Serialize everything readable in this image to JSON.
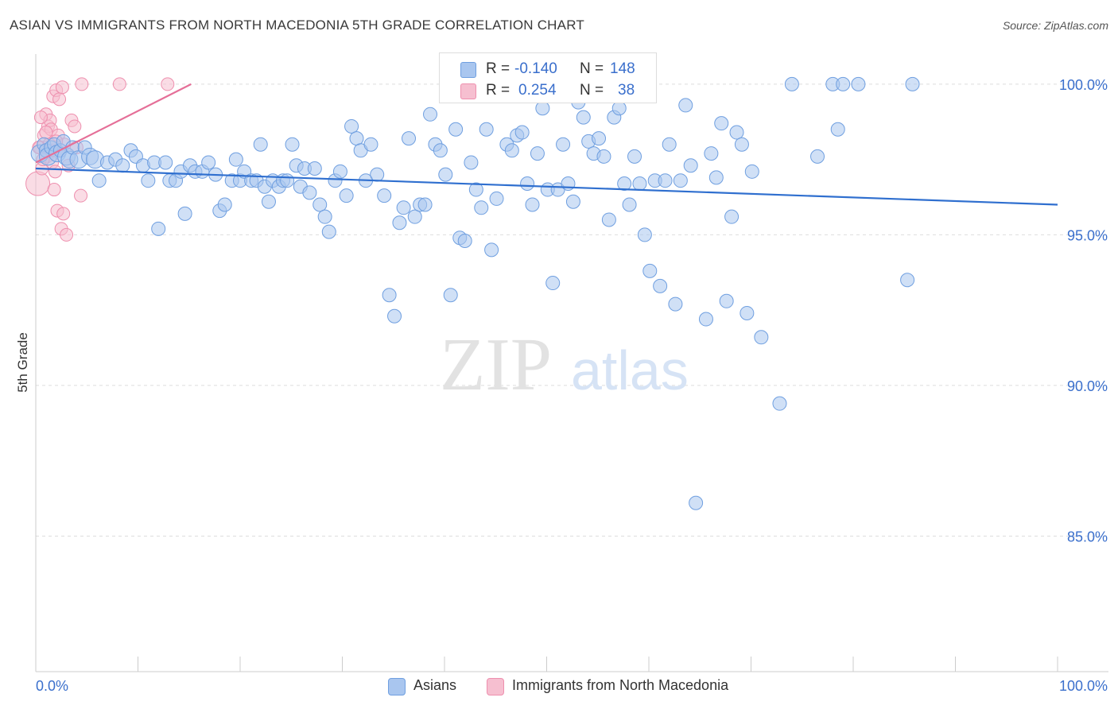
{
  "header": {
    "title": "ASIAN VS IMMIGRANTS FROM NORTH MACEDONIA 5TH GRADE CORRELATION CHART",
    "source": "Source: ZipAtlas.com"
  },
  "legend_box": {
    "rows": [
      {
        "r_label": "R =",
        "r_value": "-0.140",
        "n_label": "N =",
        "n_value": "148"
      },
      {
        "r_label": "R =",
        "r_value": "0.254",
        "n_label": "N =",
        "n_value": "38"
      }
    ]
  },
  "bottom_legend": {
    "asians": "Asians",
    "macedonia": "Immigrants from North Macedonia"
  },
  "watermark": {
    "zip": "ZIP",
    "atlas": "atlas"
  },
  "colors": {
    "blue_fill": "#a9c6ef",
    "blue_stroke": "#6f9fe0",
    "blue_line": "#2f6fcf",
    "pink_fill": "#f6bfd0",
    "pink_stroke": "#ee8fae",
    "pink_line": "#e56f98",
    "axis_text": "#3a6fcc",
    "grid": "#dddddd"
  },
  "chart_data": {
    "type": "scatter",
    "title": "ASIAN VS IMMIGRANTS FROM NORTH MACEDONIA 5TH GRADE CORRELATION CHART",
    "xlabel": "",
    "ylabel": "5th Grade",
    "xlim": [
      0,
      100
    ],
    "ylim": [
      80.5,
      101.0
    ],
    "x_tick_labels": [
      "0.0%",
      "100.0%"
    ],
    "y_ticks": [
      85.0,
      90.0,
      95.0,
      100.0
    ],
    "y_tick_labels": [
      "85.0%",
      "90.0%",
      "95.0%",
      "100.0%"
    ],
    "grid": true,
    "legend_position": "top-center",
    "series": [
      {
        "name": "Asians",
        "r": -0.14,
        "n": 148,
        "trend": {
          "x": [
            0,
            100
          ],
          "y": [
            97.2,
            96.0
          ]
        },
        "points": [
          [
            0.4,
            97.7
          ],
          [
            0.8,
            98.0
          ],
          [
            1.0,
            97.8
          ],
          [
            1.2,
            97.6
          ],
          [
            1.5,
            97.9
          ],
          [
            1.8,
            98.0
          ],
          [
            2.1,
            97.7
          ],
          [
            2.4,
            97.8
          ],
          [
            2.7,
            98.1
          ],
          [
            3.0,
            97.6
          ],
          [
            3.3,
            97.5
          ],
          [
            3.6,
            97.9
          ],
          [
            4.2,
            97.5
          ],
          [
            4.8,
            97.9
          ],
          [
            5.3,
            97.6
          ],
          [
            5.8,
            97.5
          ],
          [
            6.2,
            96.8
          ],
          [
            7.0,
            97.4
          ],
          [
            7.8,
            97.5
          ],
          [
            8.5,
            97.3
          ],
          [
            9.3,
            97.8
          ],
          [
            9.8,
            97.6
          ],
          [
            10.5,
            97.3
          ],
          [
            11.0,
            96.8
          ],
          [
            11.6,
            97.4
          ],
          [
            12.0,
            95.2
          ],
          [
            12.7,
            97.4
          ],
          [
            13.1,
            96.8
          ],
          [
            13.7,
            96.8
          ],
          [
            14.2,
            97.1
          ],
          [
            14.6,
            95.7
          ],
          [
            15.1,
            97.3
          ],
          [
            15.6,
            97.1
          ],
          [
            16.3,
            97.1
          ],
          [
            16.9,
            97.4
          ],
          [
            17.6,
            97.0
          ],
          [
            18.0,
            95.8
          ],
          [
            18.5,
            96.0
          ],
          [
            19.2,
            96.8
          ],
          [
            19.6,
            97.5
          ],
          [
            20.0,
            96.8
          ],
          [
            20.4,
            97.1
          ],
          [
            21.1,
            96.8
          ],
          [
            21.6,
            96.8
          ],
          [
            22.0,
            98.0
          ],
          [
            22.4,
            96.6
          ],
          [
            22.8,
            96.1
          ],
          [
            23.2,
            96.8
          ],
          [
            23.8,
            96.6
          ],
          [
            24.2,
            96.8
          ],
          [
            24.6,
            96.8
          ],
          [
            25.1,
            98.0
          ],
          [
            25.5,
            97.3
          ],
          [
            25.9,
            96.6
          ],
          [
            26.3,
            97.2
          ],
          [
            26.8,
            96.4
          ],
          [
            27.3,
            97.2
          ],
          [
            27.8,
            96.0
          ],
          [
            28.3,
            95.6
          ],
          [
            28.7,
            95.1
          ],
          [
            29.3,
            96.8
          ],
          [
            29.8,
            97.1
          ],
          [
            30.4,
            96.3
          ],
          [
            30.9,
            98.6
          ],
          [
            31.4,
            98.2
          ],
          [
            31.8,
            97.8
          ],
          [
            32.3,
            96.8
          ],
          [
            32.8,
            98.0
          ],
          [
            33.4,
            97.0
          ],
          [
            34.1,
            96.3
          ],
          [
            34.6,
            93.0
          ],
          [
            35.1,
            92.3
          ],
          [
            35.6,
            95.4
          ],
          [
            36.0,
            95.9
          ],
          [
            36.5,
            98.2
          ],
          [
            37.1,
            95.6
          ],
          [
            37.6,
            96.0
          ],
          [
            38.1,
            96.0
          ],
          [
            38.6,
            99.0
          ],
          [
            39.1,
            98.0
          ],
          [
            39.6,
            97.8
          ],
          [
            40.1,
            97.0
          ],
          [
            40.6,
            93.0
          ],
          [
            41.1,
            98.5
          ],
          [
            41.5,
            94.9
          ],
          [
            42.0,
            94.8
          ],
          [
            42.6,
            97.4
          ],
          [
            43.1,
            96.5
          ],
          [
            43.6,
            95.9
          ],
          [
            44.1,
            98.5
          ],
          [
            44.6,
            94.5
          ],
          [
            45.1,
            96.2
          ],
          [
            46.1,
            98.0
          ],
          [
            46.6,
            97.8
          ],
          [
            47.1,
            98.3
          ],
          [
            47.6,
            98.4
          ],
          [
            48.1,
            96.7
          ],
          [
            48.6,
            96.0
          ],
          [
            49.1,
            97.7
          ],
          [
            49.6,
            99.2
          ],
          [
            50.1,
            96.5
          ],
          [
            50.6,
            93.4
          ],
          [
            51.1,
            96.5
          ],
          [
            51.6,
            98.0
          ],
          [
            52.1,
            96.7
          ],
          [
            52.6,
            96.1
          ],
          [
            53.1,
            99.4
          ],
          [
            53.6,
            98.9
          ],
          [
            54.1,
            98.1
          ],
          [
            54.6,
            97.7
          ],
          [
            55.1,
            98.2
          ],
          [
            55.6,
            97.6
          ],
          [
            56.1,
            95.5
          ],
          [
            56.6,
            98.9
          ],
          [
            57.1,
            99.2
          ],
          [
            57.6,
            96.7
          ],
          [
            58.1,
            96.0
          ],
          [
            58.6,
            97.6
          ],
          [
            59.1,
            96.7
          ],
          [
            59.6,
            95.0
          ],
          [
            60.1,
            93.8
          ],
          [
            60.6,
            96.8
          ],
          [
            61.1,
            93.3
          ],
          [
            61.6,
            96.8
          ],
          [
            62.6,
            92.7
          ],
          [
            63.1,
            96.8
          ],
          [
            63.6,
            99.3
          ],
          [
            64.1,
            97.3
          ],
          [
            64.6,
            86.1
          ],
          [
            65.6,
            92.2
          ],
          [
            66.1,
            97.7
          ],
          [
            66.6,
            96.9
          ],
          [
            67.1,
            98.7
          ],
          [
            67.6,
            92.8
          ],
          [
            68.1,
            95.6
          ],
          [
            68.6,
            98.4
          ],
          [
            69.1,
            98.0
          ],
          [
            69.6,
            92.4
          ],
          [
            70.1,
            97.1
          ],
          [
            71.0,
            91.6
          ],
          [
            72.8,
            89.4
          ],
          [
            74.0,
            100.0
          ],
          [
            76.5,
            97.6
          ],
          [
            78.0,
            100.0
          ],
          [
            78.5,
            98.5
          ],
          [
            79.0,
            100.0
          ],
          [
            80.5,
            100.0
          ],
          [
            85.3,
            93.5
          ],
          [
            85.8,
            100.0
          ],
          [
            62.0,
            98.0
          ]
        ]
      },
      {
        "name": "Immigrants from North Macedonia",
        "r": 0.254,
        "n": 38,
        "trend": {
          "x": [
            0,
            15.2
          ],
          "y": [
            97.4,
            100.0
          ]
        },
        "points": [
          [
            0.2,
            96.7
          ],
          [
            0.4,
            97.9
          ],
          [
            0.6,
            97.2
          ],
          [
            0.8,
            98.3
          ],
          [
            1.0,
            99.0
          ],
          [
            1.1,
            97.6
          ],
          [
            1.2,
            98.6
          ],
          [
            1.3,
            98.0
          ],
          [
            1.4,
            98.8
          ],
          [
            1.5,
            98.5
          ],
          [
            1.6,
            97.4
          ],
          [
            1.7,
            99.6
          ],
          [
            1.8,
            96.5
          ],
          [
            1.9,
            97.1
          ],
          [
            2.0,
            99.8
          ],
          [
            2.1,
            95.8
          ],
          [
            2.2,
            98.3
          ],
          [
            2.3,
            99.5
          ],
          [
            2.4,
            97.8
          ],
          [
            2.5,
            95.2
          ],
          [
            2.6,
            99.9
          ],
          [
            2.7,
            95.7
          ],
          [
            2.8,
            98.0
          ],
          [
            3.0,
            95.0
          ],
          [
            3.2,
            97.3
          ],
          [
            3.5,
            98.8
          ],
          [
            3.8,
            98.6
          ],
          [
            4.0,
            97.9
          ],
          [
            4.4,
            96.3
          ],
          [
            4.5,
            100.0
          ],
          [
            8.2,
            100.0
          ],
          [
            12.9,
            100.0
          ],
          [
            0.5,
            98.9
          ],
          [
            0.7,
            97.5
          ],
          [
            1.0,
            98.4
          ],
          [
            1.5,
            97.8
          ],
          [
            0.3,
            97.9
          ],
          [
            2.0,
            98.1
          ]
        ]
      }
    ]
  }
}
